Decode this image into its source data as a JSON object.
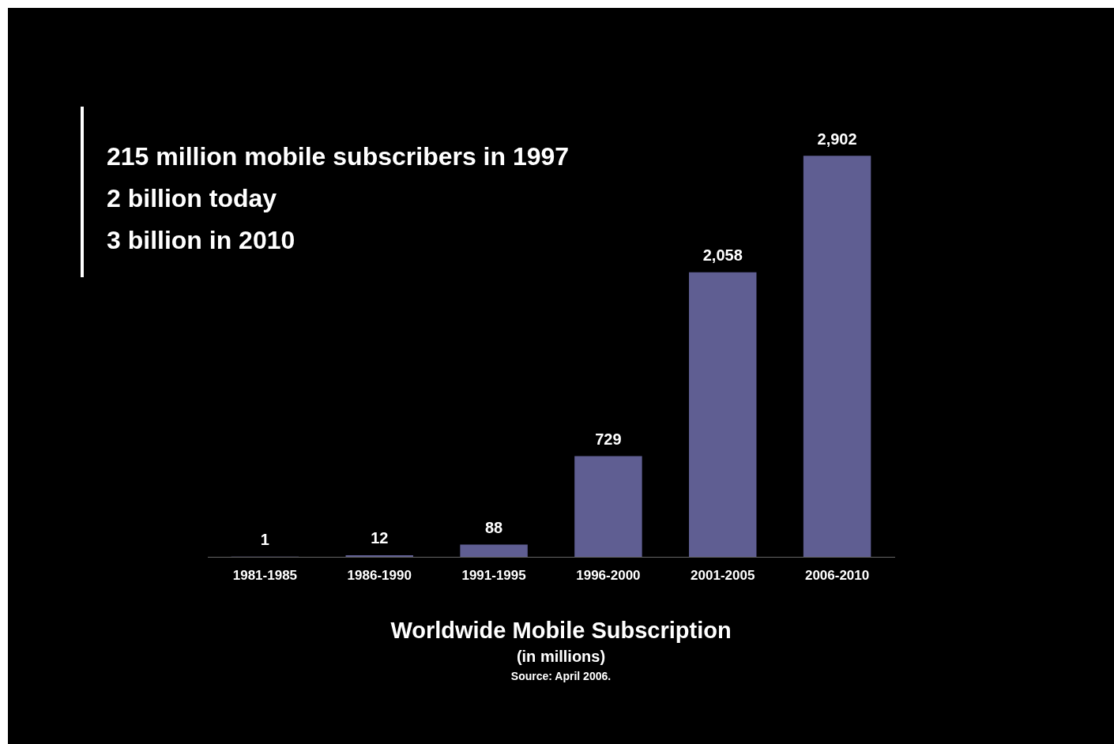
{
  "chart_data": {
    "type": "bar",
    "title": "Worldwide Mobile Subscription",
    "subtitle": "(in millions)",
    "categories": [
      "1981-1985",
      "1986-1990",
      "1991-1995",
      "1996-2000",
      "2001-2005",
      "2006-2010"
    ],
    "values": [
      1,
      12,
      88,
      729,
      2058,
      2902
    ],
    "value_labels": [
      "1",
      "12",
      "88",
      "729",
      "2,058",
      "2,902"
    ],
    "color": "#5f5e92",
    "grid": false,
    "legend": false,
    "annotations": [
      "215 million mobile subscribers in 1997",
      "2 billion today",
      "3 billion in 2010",
      "Source: April 2006."
    ]
  }
}
